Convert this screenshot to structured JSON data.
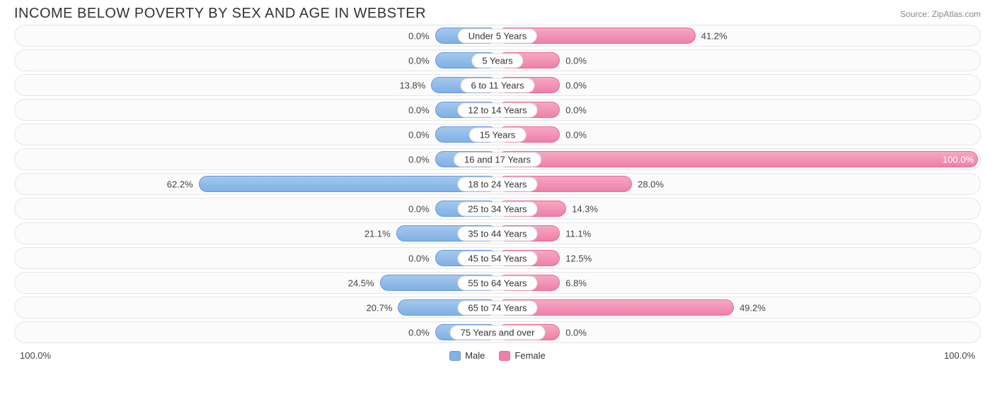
{
  "title": "INCOME BELOW POVERTY BY SEX AND AGE IN WEBSTER",
  "source": "Source: ZipAtlas.com",
  "axis_left": "100.0%",
  "axis_right": "100.0%",
  "legend": {
    "male": "Male",
    "female": "Female"
  },
  "chart": {
    "type": "diverging-bar",
    "min_bar_pct": 13.0,
    "male_color": "#82b1e6",
    "male_border": "#6699dd",
    "female_color": "#ef7fa8",
    "female_border": "#e96a99",
    "track_bg": "#fbfbfb",
    "track_border": "#e6e6e6",
    "label_fontsize": 13,
    "title_fontsize": 20,
    "rows": [
      {
        "category": "Under 5 Years",
        "male": 0.0,
        "female": 41.2
      },
      {
        "category": "5 Years",
        "male": 0.0,
        "female": 0.0
      },
      {
        "category": "6 to 11 Years",
        "male": 13.8,
        "female": 0.0
      },
      {
        "category": "12 to 14 Years",
        "male": 0.0,
        "female": 0.0
      },
      {
        "category": "15 Years",
        "male": 0.0,
        "female": 0.0
      },
      {
        "category": "16 and 17 Years",
        "male": 0.0,
        "female": 100.0
      },
      {
        "category": "18 to 24 Years",
        "male": 62.2,
        "female": 28.0
      },
      {
        "category": "25 to 34 Years",
        "male": 0.0,
        "female": 14.3
      },
      {
        "category": "35 to 44 Years",
        "male": 21.1,
        "female": 11.1
      },
      {
        "category": "45 to 54 Years",
        "male": 0.0,
        "female": 12.5
      },
      {
        "category": "55 to 64 Years",
        "male": 24.5,
        "female": 6.8
      },
      {
        "category": "65 to 74 Years",
        "male": 20.7,
        "female": 49.2
      },
      {
        "category": "75 Years and over",
        "male": 0.0,
        "female": 0.0
      }
    ]
  }
}
